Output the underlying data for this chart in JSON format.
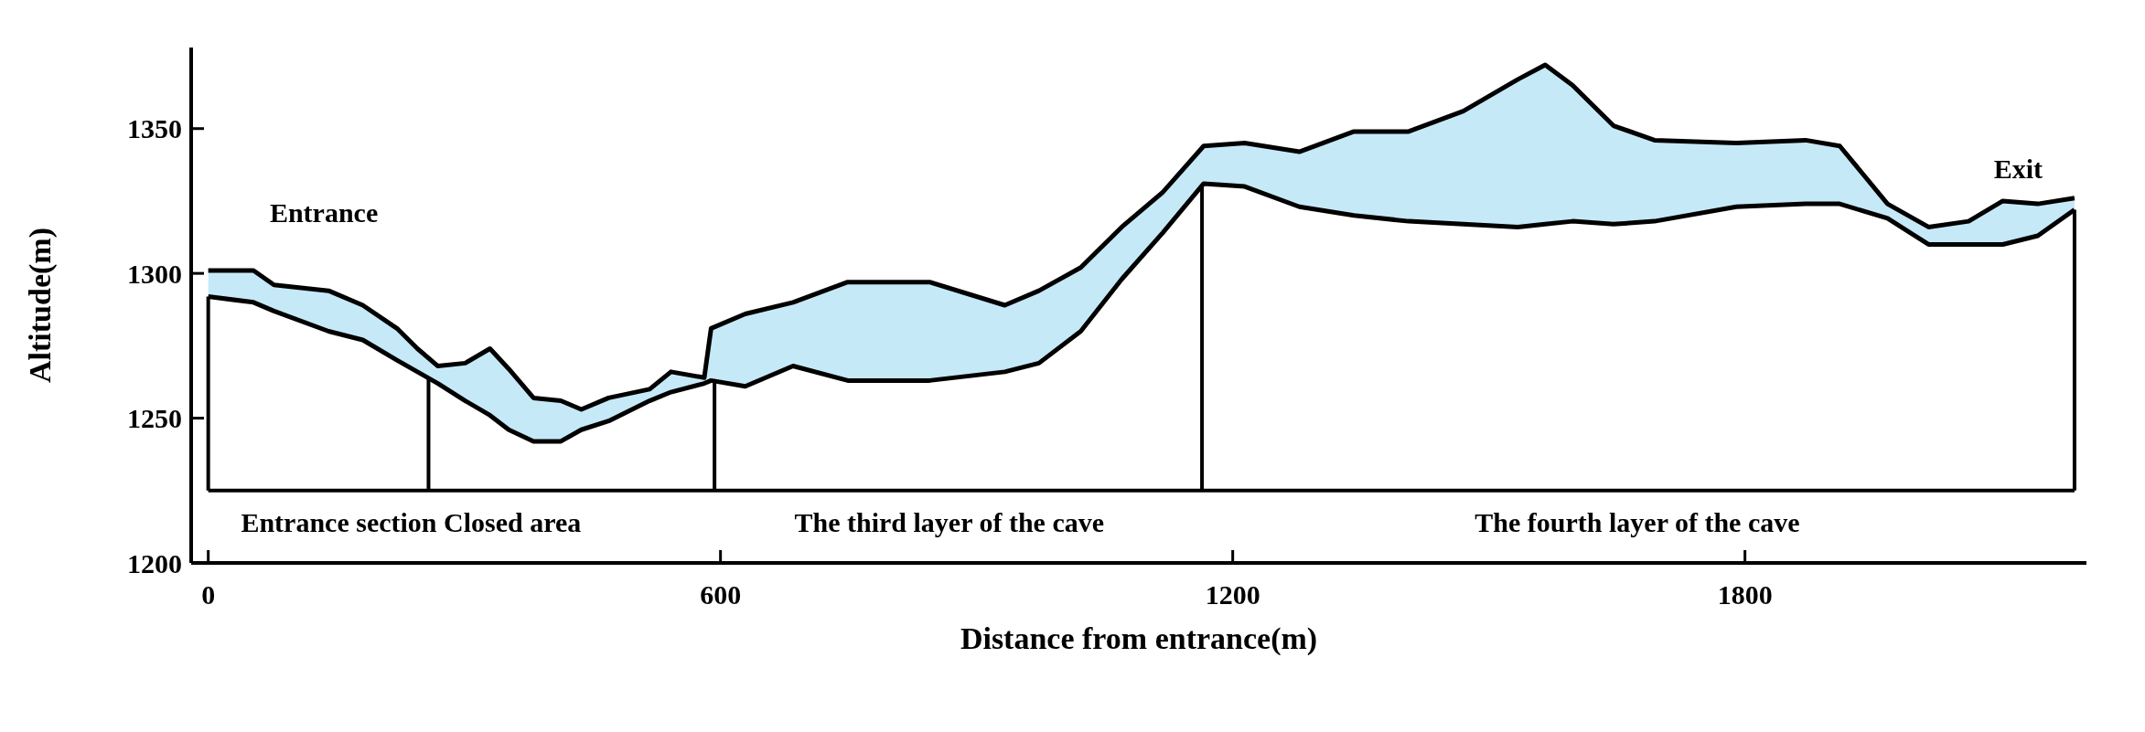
{
  "chart_data": {
    "type": "area",
    "xlabel": "Distance from entrance(m)",
    "ylabel": "Altitude(m)",
    "x": [
      0,
      53,
      77,
      141,
      181,
      221,
      245,
      269,
      301,
      330,
      352,
      381,
      413,
      437,
      469,
      517,
      542,
      581,
      589,
      629,
      685,
      749,
      845,
      933,
      973,
      1022,
      1070,
      1118,
      1166,
      1214,
      1278,
      1342,
      1406,
      1470,
      1534,
      1566,
      1598,
      1646,
      1694,
      1790,
      1871,
      1911,
      1967,
      2015,
      2062,
      2102,
      2143,
      2186
    ],
    "series": [
      {
        "type": "line",
        "color": "#000000",
        "values": [
          1292,
          1290,
          1287,
          1280,
          1277,
          1270,
          1266,
          1262,
          1256,
          1251,
          1246,
          1242,
          1242,
          1246,
          1249,
          1256,
          1259,
          1262,
          1263,
          1261,
          1268,
          1263,
          1263,
          1266,
          1269,
          1280,
          1298,
          1314,
          1331,
          1330,
          1323,
          1320,
          1318,
          1317,
          1316,
          1317,
          1318,
          1317,
          1318,
          1323,
          1324,
          1324,
          1319,
          1310,
          1310,
          1310,
          1313,
          1322
        ]
      },
      {
        "color": "#c6e9f8",
        "values": [
          1301,
          1301,
          1296,
          1294,
          1289,
          1281,
          1274,
          1268,
          1269,
          1274,
          1267,
          1257,
          1256,
          1253,
          1257,
          1260,
          1266,
          1264,
          1281,
          1286,
          1290,
          1297,
          1297,
          1289,
          1294,
          1302,
          1316,
          1328,
          1344,
          1345,
          1342,
          1349,
          1349,
          1356,
          1367,
          1372,
          1365,
          1351,
          1346,
          1345,
          1346,
          1344,
          1324,
          1316,
          1318,
          1325,
          1324,
          1326
        ]
      }
    ],
    "xlim": [
      -20,
      2200
    ],
    "ylim": [
      1200,
      1378
    ],
    "xticks": [
      0,
      600,
      1200,
      1800
    ],
    "yticks": [
      1200,
      1250,
      1300,
      1350
    ],
    "grid": false,
    "ref_lines": [
      {
        "axis": "y",
        "value": 1225
      },
      {
        "axis": "x",
        "value": 0
      },
      {
        "axis": "x",
        "value": 258
      },
      {
        "axis": "x",
        "value": 593
      },
      {
        "axis": "x",
        "value": 1164
      },
      {
        "axis": "x",
        "value": 2186
      }
    ],
    "annotations": [
      "Entrance",
      "Exit",
      "Entrance section Closed area",
      "The third layer of the cave",
      "The fourth layer of the cave"
    ]
  }
}
